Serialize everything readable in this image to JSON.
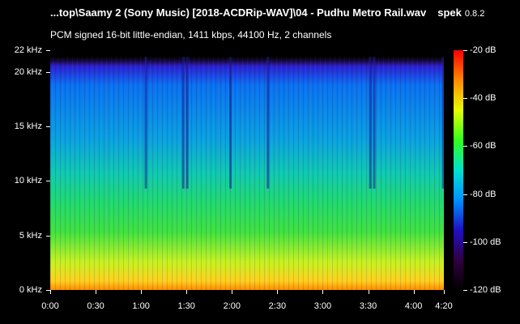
{
  "header": {
    "file_title": "...top\\Saamy 2 (Sony Music) [2018-ACDRip-WAV]\\04 - Pudhu Metro Rail.wav",
    "app_name": "spek",
    "app_version": "0.8.2",
    "info": "PCM signed 16-bit little-endian, 1411 kbps, 44100 Hz, 2 channels"
  },
  "frequency_axis": {
    "labels": [
      "22 kHz",
      "20 kHz",
      "15 kHz",
      "10 kHz",
      "5 kHz",
      "0 kHz"
    ],
    "values_khz": [
      22,
      20,
      15,
      10,
      5,
      0
    ]
  },
  "time_axis": {
    "labels": [
      "0:00",
      "0:30",
      "1:00",
      "1:30",
      "2:00",
      "2:30",
      "3:00",
      "3:30",
      "4:00",
      "4:20"
    ],
    "values_sec": [
      0,
      30,
      60,
      90,
      120,
      150,
      180,
      210,
      240,
      260
    ]
  },
  "level_scale": {
    "labels": [
      "-20 dB",
      "-40 dB",
      "-60 dB",
      "-80 dB",
      "-100 dB",
      "-120 dB"
    ],
    "values_db": [
      -20,
      -40,
      -60,
      -80,
      -100,
      -120
    ]
  },
  "colors": {
    "background": "#000000",
    "text": "#ffffff",
    "palette": [
      "#ff0000",
      "#ff8a00",
      "#e6ff00",
      "#33ff20",
      "#00e0d0",
      "#0090ff",
      "#2010c0",
      "#300040",
      "#000000"
    ]
  }
}
